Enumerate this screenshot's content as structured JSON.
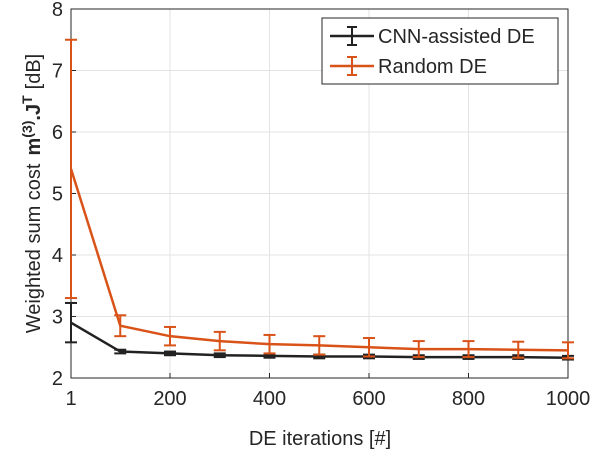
{
  "chart_data": {
    "type": "errorbar-line",
    "x_label": "DE iterations [#]",
    "y_label_parts": [
      {
        "text": "Weighted sum cost",
        "bold": false,
        "sup": false
      },
      {
        "text": "m",
        "bold": true,
        "sup": false
      },
      {
        "text": "(3)",
        "bold": true,
        "sup": true
      },
      {
        "text": ".J",
        "bold": true,
        "sup": false
      },
      {
        "text": "T",
        "bold": true,
        "sup": true
      },
      {
        "text": "[dB]",
        "bold": false,
        "sup": false
      }
    ],
    "x": [
      1,
      100,
      200,
      300,
      400,
      500,
      600,
      700,
      800,
      900,
      1000
    ],
    "series": [
      {
        "name": "CNN-assisted DE",
        "color": "#222222",
        "values": [
          2.9,
          2.43,
          2.4,
          2.37,
          2.36,
          2.35,
          2.35,
          2.34,
          2.34,
          2.34,
          2.33
        ],
        "errors": [
          0.32,
          0.03,
          0.03,
          0.03,
          0.03,
          0.03,
          0.03,
          0.03,
          0.03,
          0.03,
          0.03
        ]
      },
      {
        "name": "Random DE",
        "color": "#d95319",
        "values": [
          5.4,
          2.85,
          2.68,
          2.6,
          2.55,
          2.53,
          2.5,
          2.47,
          2.47,
          2.46,
          2.45
        ],
        "errors": [
          2.1,
          0.17,
          0.15,
          0.15,
          0.15,
          0.15,
          0.15,
          0.13,
          0.13,
          0.13,
          0.13
        ]
      }
    ],
    "xlim": [
      1,
      1000
    ],
    "xticks": [
      1,
      200,
      400,
      600,
      800,
      1000
    ],
    "ylim": [
      2,
      8
    ],
    "yticks": [
      2,
      3,
      4,
      5,
      6,
      7,
      8
    ],
    "grid": true,
    "legend": "top-right"
  }
}
